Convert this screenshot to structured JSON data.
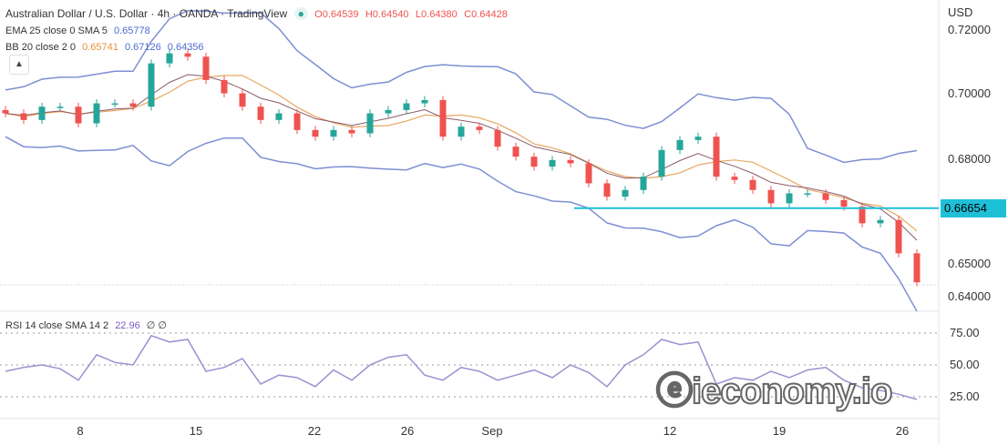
{
  "header": {
    "title": "Australian Dollar / U.S. Dollar · 4h · OANDA · TradingView",
    "open": "O0.64539",
    "high": "H0.64540",
    "low": "L0.64380",
    "close": "C0.64428"
  },
  "indicators": {
    "ema_label": "EMA 25 close 0 SMA 5",
    "ema_value": "0.65778",
    "bb_label": "BB 20 close 2 0",
    "bb_basis": "0.65741",
    "bb_upper": "0.67126",
    "bb_lower": "0.64356",
    "rsi_label": "RSI 14 close SMA 14 2",
    "rsi_value": "22.96",
    "rsi_extra": "∅ ∅"
  },
  "price_axis": {
    "currency": "USD",
    "ticks": [
      "0.72000",
      "0.70000",
      "0.68000",
      "0.65000",
      "0.64000"
    ],
    "level_tag": "0.66654"
  },
  "rsi_axis": {
    "ticks": [
      "75.00",
      "50.00",
      "25.00"
    ]
  },
  "time_axis": {
    "ticks": [
      "8",
      "15",
      "22",
      "26",
      "Sep",
      "12",
      "19",
      "26"
    ]
  },
  "watermark": "ieconomy.io",
  "colors": {
    "up": "#26a69a",
    "down": "#ef5350",
    "bb": "#7e8fd3",
    "ema": "#e8a760",
    "level": "#1ec0d8",
    "rsi": "#9f8fd0"
  },
  "chart_data": [
    {
      "type": "candlestick",
      "title": "Australian Dollar / U.S. Dollar · 4h · OANDA · TradingView",
      "ylim": [
        0.636,
        0.728
      ],
      "horizontal_level": 0.66654,
      "closes": [
        0.695,
        0.693,
        0.697,
        0.697,
        0.692,
        0.698,
        0.698,
        0.697,
        0.71,
        0.713,
        0.712,
        0.705,
        0.701,
        0.697,
        0.693,
        0.695,
        0.69,
        0.688,
        0.69,
        0.689,
        0.695,
        0.696,
        0.698,
        0.699,
        0.688,
        0.691,
        0.69,
        0.685,
        0.682,
        0.679,
        0.681,
        0.68,
        0.674,
        0.67,
        0.672,
        0.676,
        0.684,
        0.687,
        0.688,
        0.676,
        0.675,
        0.672,
        0.668,
        0.671,
        0.671,
        0.669,
        0.667,
        0.662,
        0.663,
        0.653,
        0.6443
      ]
    },
    {
      "type": "line",
      "title": "RSI 14 close SMA 14 2",
      "ylim": [
        0,
        100
      ],
      "levels": [
        75,
        50,
        25
      ],
      "values": [
        45,
        48,
        50,
        47,
        38,
        58,
        52,
        50,
        73,
        68,
        70,
        45,
        48,
        55,
        35,
        42,
        40,
        33,
        46,
        38,
        50,
        56,
        58,
        42,
        38,
        48,
        45,
        38,
        42,
        46,
        40,
        50,
        44,
        33,
        50,
        58,
        70,
        66,
        68,
        35,
        40,
        38,
        45,
        40,
        46,
        48,
        38,
        32,
        30,
        27,
        22.96
      ]
    }
  ]
}
